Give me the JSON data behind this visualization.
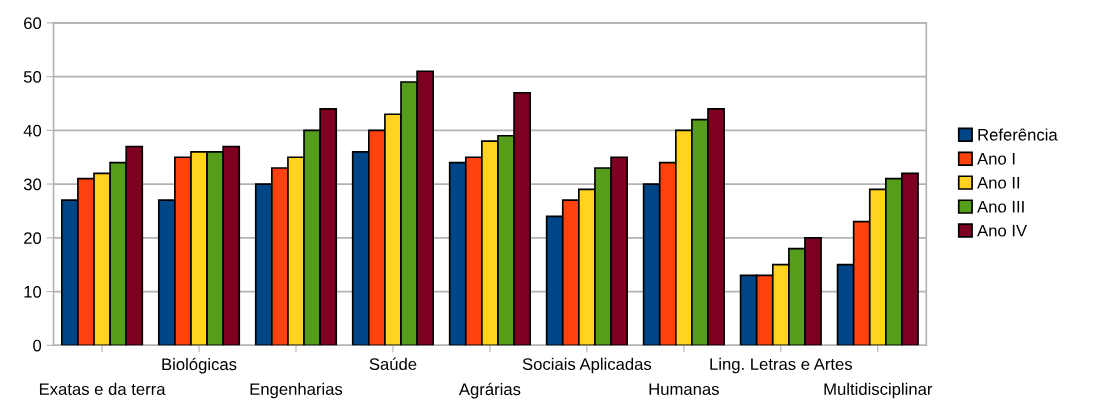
{
  "chart_data": {
    "type": "bar",
    "categories": [
      "Exatas e da terra",
      "Biológicas",
      "Engenharias",
      "Saúde",
      "Agrárias",
      "Sociais Aplicadas",
      "Humanas",
      "Ling. Letras e Artes",
      "Multidisciplinar"
    ],
    "series": [
      {
        "name": "Referência",
        "color": "#004586",
        "values": [
          27,
          27,
          30,
          36,
          34,
          24,
          30,
          13,
          15
        ]
      },
      {
        "name": "Ano I",
        "color": "#ff420e",
        "values": [
          31,
          35,
          33,
          40,
          35,
          27,
          34,
          13,
          23
        ]
      },
      {
        "name": "Ano II",
        "color": "#ffd320",
        "values": [
          32,
          36,
          35,
          43,
          38,
          29,
          40,
          15,
          29
        ]
      },
      {
        "name": "Ano III",
        "color": "#579d1c",
        "values": [
          34,
          36,
          40,
          49,
          39,
          33,
          42,
          18,
          31
        ]
      },
      {
        "name": "Ano IV",
        "color": "#7e0021",
        "values": [
          37,
          37,
          44,
          51,
          47,
          35,
          44,
          20,
          32
        ]
      }
    ],
    "ylim": [
      0,
      60
    ],
    "yticks": [
      0,
      10,
      20,
      30,
      40,
      50,
      60
    ],
    "grid": "y",
    "legend": "right"
  }
}
